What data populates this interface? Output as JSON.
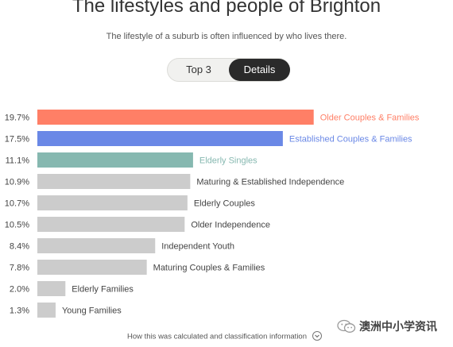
{
  "header": {
    "title": "The lifestyles and people of Brighton",
    "subtitle": "The lifestyle of a suburb is often influenced by who lives there."
  },
  "toggle": {
    "options": [
      "Top 3",
      "Details"
    ],
    "selected": "Details"
  },
  "footer": {
    "link_text": "How this was calculated and classification information"
  },
  "watermark": {
    "text": "澳洲中小学资讯"
  },
  "colors": {
    "top1": "#ff7f66",
    "top2": "#6a88e6",
    "top3": "#86b8b0",
    "other": "#cccccc"
  },
  "chart_data": {
    "type": "bar",
    "orientation": "horizontal",
    "categories": [
      "Older Couples & Families",
      "Established Couples & Families",
      "Elderly Singles",
      "Maturing & Established Independence",
      "Elderly Couples",
      "Older Independence",
      "Independent Youth",
      "Maturing Couples & Families",
      "Elderly Families",
      "Young Families"
    ],
    "values": [
      19.7,
      17.5,
      11.1,
      10.9,
      10.7,
      10.5,
      8.4,
      7.8,
      2.0,
      1.3
    ],
    "value_labels": [
      "19.7%",
      "17.5%",
      "11.1%",
      "10.9%",
      "10.7%",
      "10.5%",
      "8.4%",
      "7.8%",
      "2.0%",
      "1.3%"
    ],
    "unit": "%",
    "highlighted_top": 3,
    "xlim": [
      0,
      20
    ]
  }
}
